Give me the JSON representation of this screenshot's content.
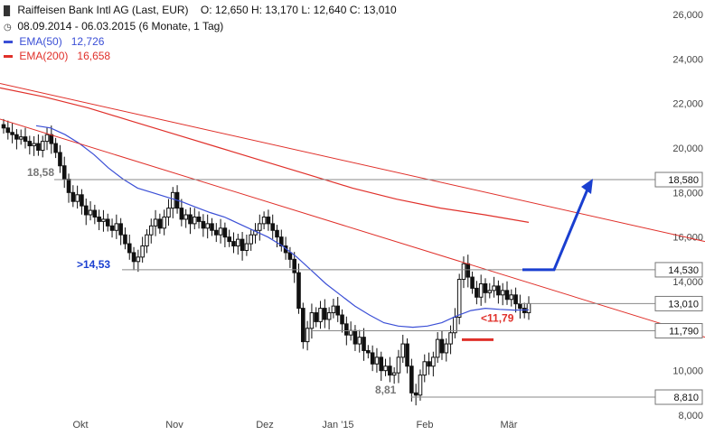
{
  "header": {
    "title": "Raiffeisen Bank Intl AG (Last, EUR)",
    "ohlc": "O: 12,650  H: 13,170  L: 12,640  C: 13,010",
    "range": "08.09.2014 - 06.03.2015 (6 Monate, 1 Tag)",
    "ema50_label": "EMA(50)",
    "ema50_value": "12,726",
    "ema200_label": "EMA(200)",
    "ema200_value": "16,658"
  },
  "colors": {
    "ema50": "#3b4fd6",
    "ema200": "#e0302a",
    "trendline": "#e0302a",
    "arrow": "#1a3fd0",
    "support": "#e0302a",
    "candle": "#111111",
    "grid": "#888888"
  },
  "chart_data": {
    "type": "candlestick",
    "y_axis": {
      "min": 8000,
      "max": 26000,
      "ticks": [
        "8,000",
        "10,000",
        "12,000",
        "14,000",
        "16,000",
        "18,000",
        "20,000",
        "22,000",
        "24,000",
        "26,000"
      ],
      "tick_values": [
        8000,
        10000,
        12000,
        14000,
        16000,
        18000,
        20000,
        22000,
        24000,
        26000
      ]
    },
    "x_axis": {
      "ticks": [
        "Okt",
        "Nov",
        "Dez",
        "Jan '15",
        "Feb",
        "Mär"
      ]
    },
    "levels": [
      {
        "value": 18580,
        "box_label": "18,580",
        "annotation": "18,58"
      },
      {
        "value": 14530,
        "box_label": "14,530",
        "annotation": ">14,53"
      },
      {
        "value": 13010,
        "box_label": "13,010"
      },
      {
        "value": 11790,
        "box_label": "11,790",
        "annotation": "<11,79"
      },
      {
        "value": 8810,
        "box_label": "8,810",
        "annotation": "8,81"
      }
    ],
    "close_series": [
      20900,
      20700,
      20600,
      20400,
      20500,
      20300,
      20100,
      20200,
      19900,
      20300,
      20600,
      20200,
      19800,
      19200,
      18600,
      18000,
      17600,
      17900,
      17400,
      17000,
      17200,
      16900,
      16700,
      16800,
      16500,
      16300,
      16600,
      16100,
      15700,
      15300,
      14900,
      15100,
      15600,
      16100,
      16500,
      16800,
      16400,
      16900,
      17300,
      18000,
      17300,
      16800,
      17000,
      16600,
      16900,
      16700,
      16400,
      16600,
      16300,
      16100,
      16400,
      16000,
      15800,
      15600,
      15900,
      15400,
      15700,
      16100,
      16300,
      16600,
      16900,
      16600,
      16300,
      16000,
      15600,
      15300,
      15000,
      14400,
      12800,
      11300,
      11900,
      12600,
      12200,
      12800,
      12300,
      12600,
      12900,
      12500,
      12100,
      11600,
      11800,
      11200,
      11500,
      10900,
      10800,
      10300,
      10600,
      10000,
      10200,
      9800,
      9900,
      10600,
      11200,
      10200,
      9000,
      8900,
      9800,
      10400,
      10200,
      10600,
      11400,
      10800,
      11200,
      11700,
      12400,
      14100,
      14800,
      14200,
      13700,
      13300,
      13900,
      13500,
      13600,
      13800,
      13400,
      13600,
      13200,
      13400,
      13000,
      12800,
      12600,
      13010
    ],
    "ema50": [
      21000,
      20900,
      20600,
      20200,
      19700,
      19100,
      18600,
      18200,
      18000,
      17800,
      17600,
      17350,
      17100,
      16900,
      16600,
      16300,
      16000,
      15600,
      15100,
      14500,
      13900,
      13400,
      12900,
      12500,
      12150,
      12000,
      11950,
      12000,
      12150,
      12450,
      12700,
      12800,
      12750,
      12720,
      12726
    ],
    "ema200": [
      22700,
      22300,
      21800,
      21200,
      20600,
      20000,
      19400,
      18800,
      18200,
      17700,
      17300,
      17000,
      16658
    ]
  }
}
